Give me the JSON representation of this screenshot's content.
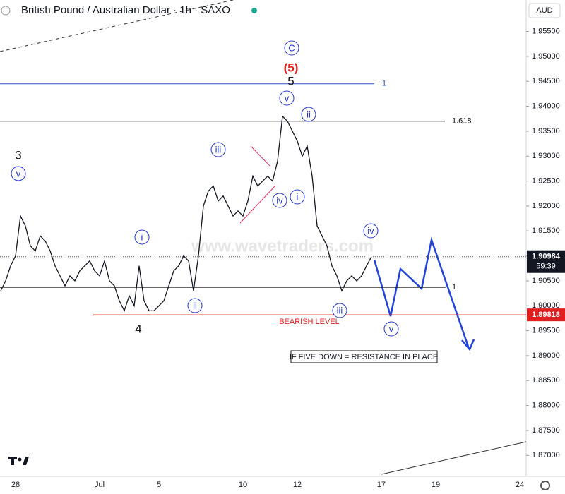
{
  "chart_data": {
    "type": "line",
    "title": "British Pound / Australian Dollar · 1h · SAXO",
    "currency": "AUD",
    "watermark": "www.wavetraders.com",
    "countdown": "59:39",
    "current_price": 1.90984,
    "note": "IF FIVE DOWN = RESISTANCE IN PLACE",
    "annotations": [
      "3",
      "v",
      "C",
      "(5)",
      "5",
      "v",
      "ii",
      "iii",
      "iv",
      "i",
      "i",
      "ii",
      "4",
      "iii",
      "iv",
      "v"
    ],
    "levels": [
      {
        "value": 1.9445,
        "label": "1",
        "color": "#3050d0"
      },
      {
        "value": 1.937,
        "label": "1.618",
        "color": "#111111"
      },
      {
        "value": 1.9037,
        "label": "1",
        "color": "#111111"
      },
      {
        "value": 1.89818,
        "label": "BEARISH LEVEL",
        "color": "#e01e1e"
      }
    ],
    "categories": [
      null,
      null,
      null,
      "28",
      null,
      null,
      null,
      null,
      null,
      null,
      null,
      null,
      null,
      null,
      null,
      null,
      null,
      null,
      null,
      null,
      "Jul",
      null,
      null,
      null,
      null,
      null,
      null,
      null,
      null,
      null,
      null,
      null,
      "5",
      null,
      null,
      null,
      null,
      null,
      null,
      null,
      null,
      null,
      null,
      null,
      null,
      null,
      null,
      null,
      null,
      "10",
      null,
      null,
      null,
      null,
      null,
      null,
      null,
      null,
      null,
      null,
      "12",
      null,
      null,
      null,
      null,
      null,
      null,
      null,
      null,
      null,
      null,
      null,
      null,
      null,
      null,
      null,
      null,
      "17",
      null,
      null,
      null,
      null,
      null,
      null,
      null,
      null,
      null,
      null,
      "19",
      null,
      null,
      null,
      null,
      null,
      null,
      null,
      null,
      null,
      null,
      null,
      null,
      null,
      null,
      null,
      null,
      "24",
      null
    ],
    "series": [
      {
        "name": "GBPAUD",
        "color": "#131722",
        "values": [
          1.903,
          1.905,
          1.908,
          1.91,
          1.918,
          1.916,
          1.912,
          1.911,
          1.914,
          1.913,
          1.911,
          1.908,
          1.906,
          1.904,
          1.906,
          1.905,
          1.907,
          1.908,
          1.909,
          1.907,
          1.906,
          1.909,
          1.905,
          1.904,
          1.901,
          1.899,
          1.902,
          1.9,
          1.908,
          1.901,
          1.899,
          1.899,
          1.9,
          1.901,
          1.904,
          1.907,
          1.908,
          1.91,
          1.909,
          1.903,
          1.91,
          1.92,
          1.923,
          1.924,
          1.921,
          1.922,
          1.92,
          1.918,
          1.919,
          1.918,
          1.921,
          1.926,
          1.924,
          1.925,
          1.926,
          1.925,
          1.929,
          1.938,
          1.937,
          1.935,
          1.933,
          1.93,
          1.932,
          1.926,
          1.916,
          1.914,
          1.912,
          1.908,
          1.906,
          1.903,
          1.905,
          1.906,
          1.905,
          1.906,
          1.908,
          1.90984,
          null,
          null,
          null,
          null,
          null,
          null,
          null,
          null,
          null,
          null,
          null,
          null,
          null,
          null,
          null,
          null,
          null,
          null,
          null,
          null,
          null,
          null,
          null,
          null,
          null,
          null,
          null,
          null,
          null,
          null,
          null
        ]
      }
    ],
    "ylim": [
      1.8658,
      1.9613
    ],
    "yticks": [
      {
        "value": 1.87,
        "label": "1.87000"
      },
      {
        "value": 1.875,
        "label": "1.87500"
      },
      {
        "value": 1.88,
        "label": "1.88000"
      },
      {
        "value": 1.885,
        "label": "1.88500"
      },
      {
        "value": 1.89,
        "label": "1.89000"
      },
      {
        "value": 1.895,
        "label": "1.89500"
      },
      {
        "value": 1.9,
        "label": "1.90000"
      },
      {
        "value": 1.905,
        "label": "1.90500"
      },
      {
        "value": 1.91,
        "label": "1.91000"
      },
      {
        "value": 1.915,
        "label": "1.91500"
      },
      {
        "value": 1.92,
        "label": "1.92000"
      },
      {
        "value": 1.925,
        "label": "1.92500"
      },
      {
        "value": 1.93,
        "label": "1.93000"
      },
      {
        "value": 1.935,
        "label": "1.93500"
      },
      {
        "value": 1.94,
        "label": "1.94000"
      },
      {
        "value": 1.945,
        "label": "1.94500"
      },
      {
        "value": 1.95,
        "label": "1.95000"
      },
      {
        "value": 1.955,
        "label": "1.95500"
      }
    ],
    "grid": false
  }
}
